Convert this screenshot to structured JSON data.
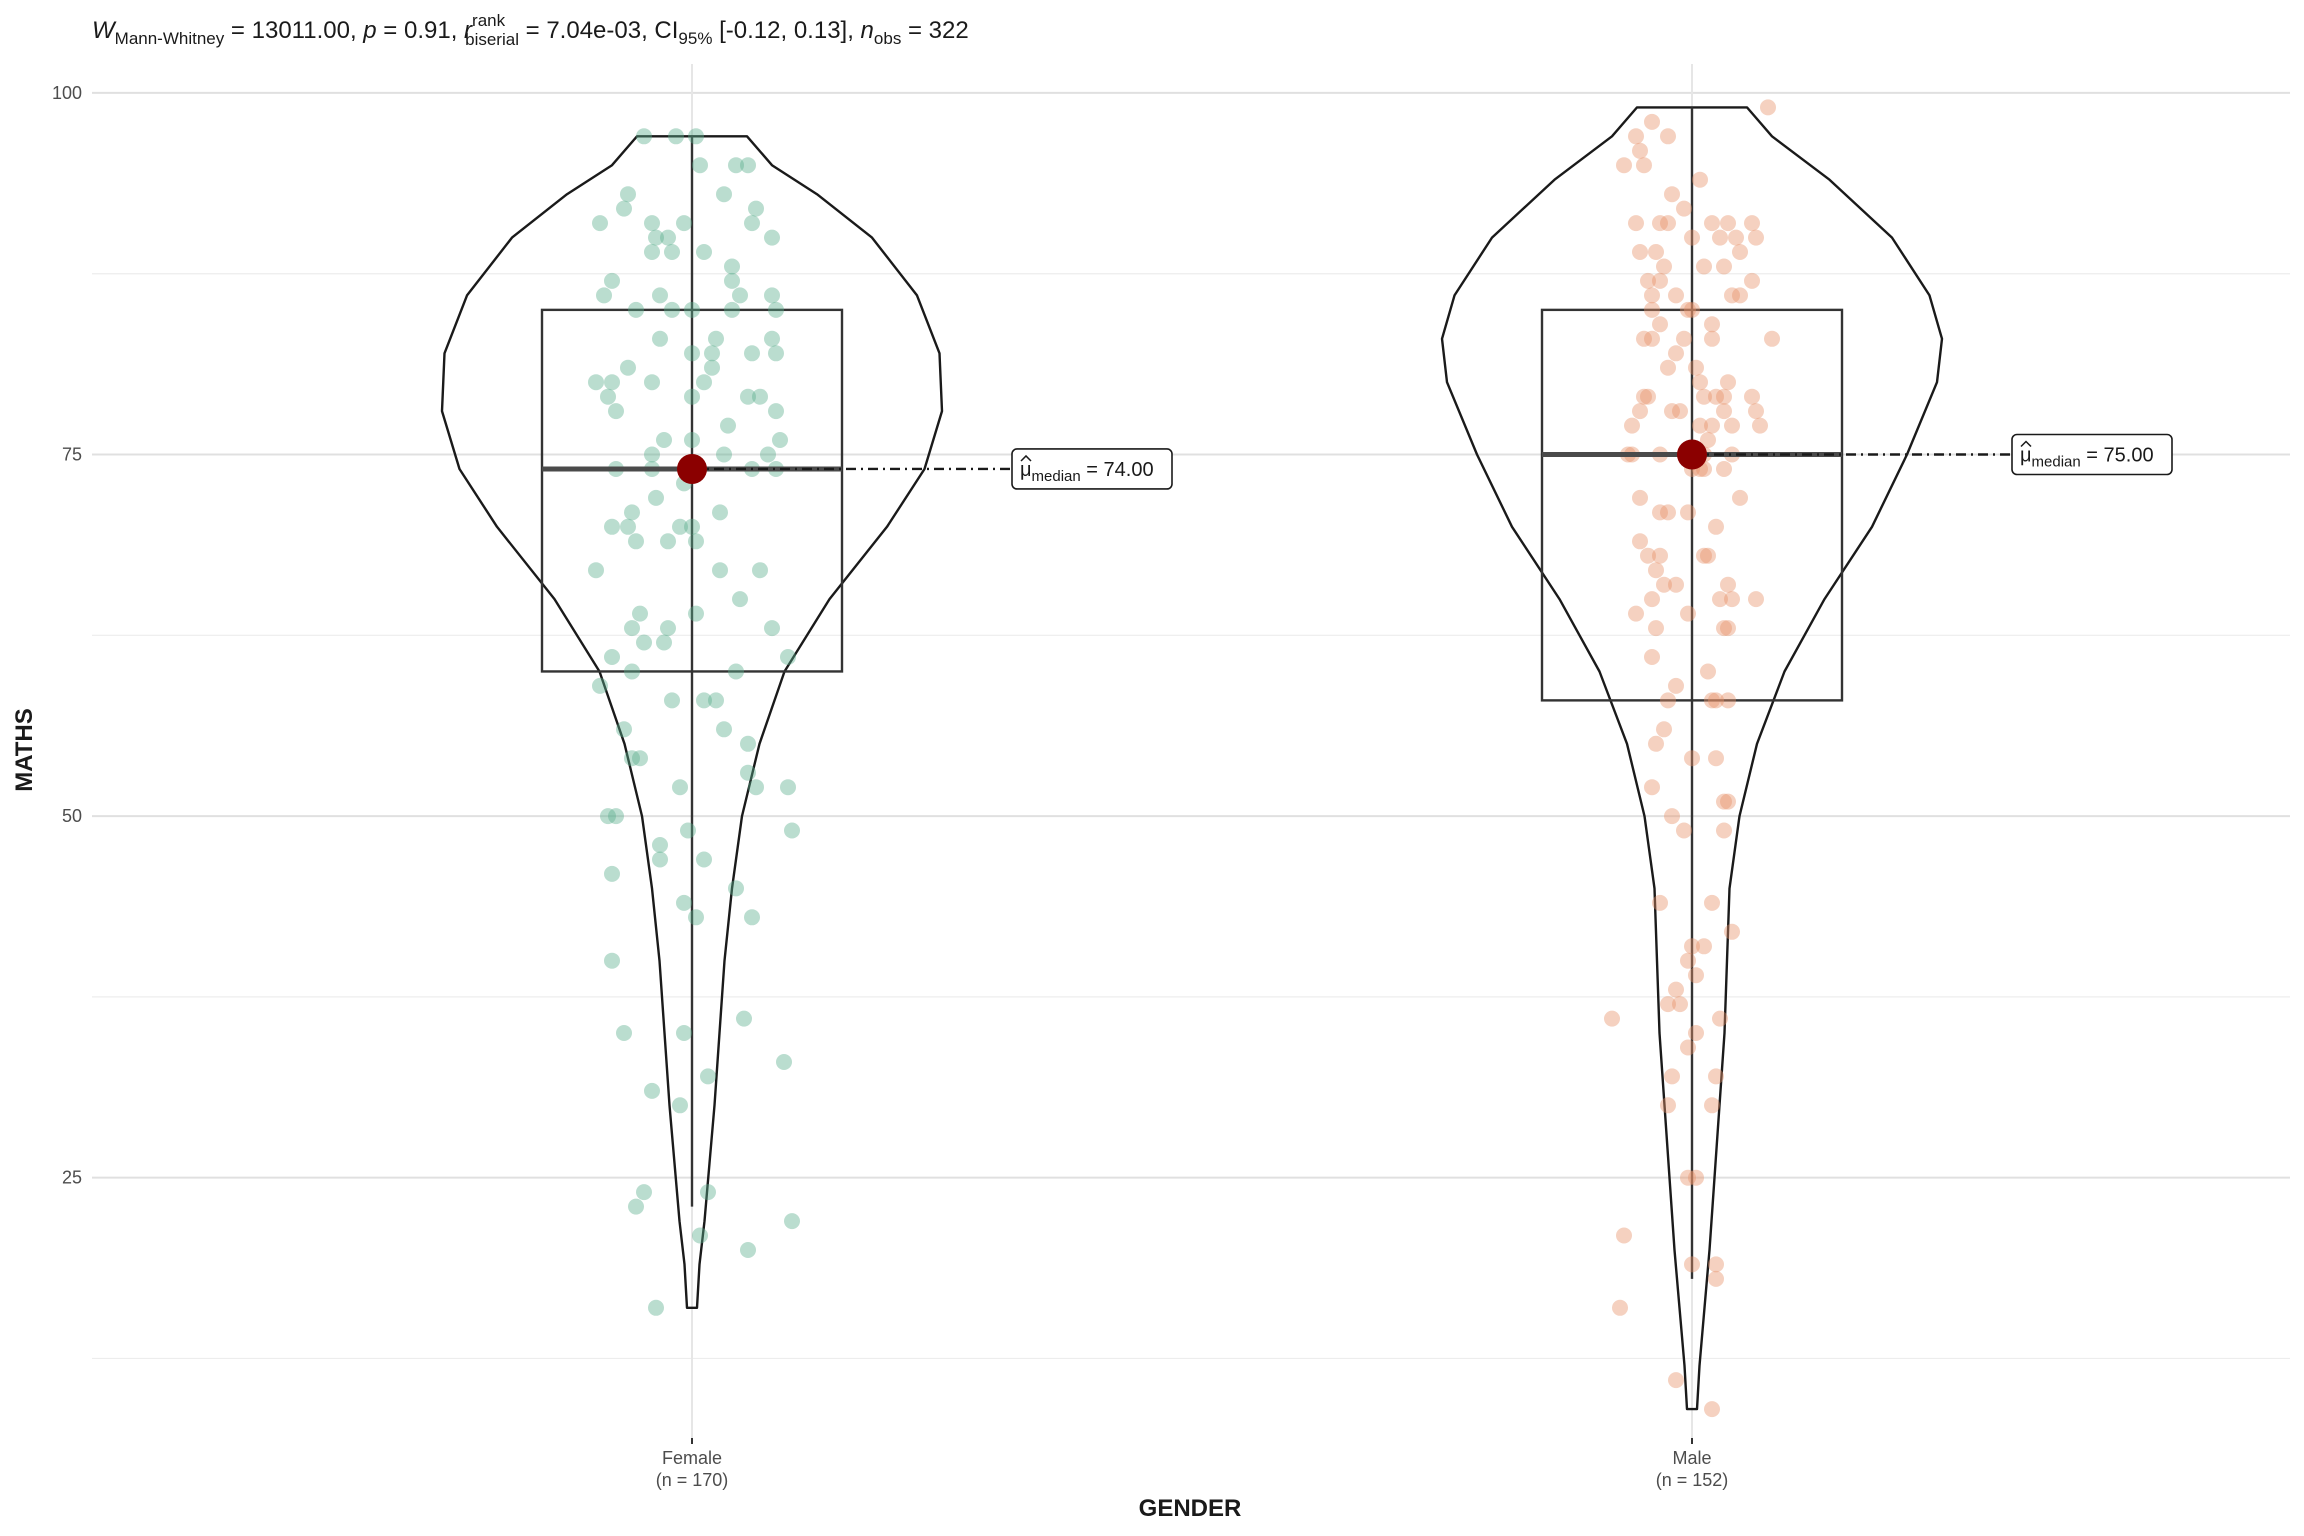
{
  "chart_data": {
    "type": "violin-box-scatter",
    "subtitle": {
      "w_symbol": "W",
      "w_sub": "Mann-Whitney",
      "w_value": " = 13011.00, ",
      "p_symbol": "p",
      "p_value": " = 0.91, ",
      "r_symbol": "r",
      "r_sup": "rank",
      "r_sub": "biserial",
      "r_value": " = 7.04e-03, CI",
      "ci_sub": "95%",
      "ci_value": " [-0.12, 0.13], ",
      "n_symbol": "n",
      "n_sub": "obs",
      "n_value": " = 322"
    },
    "xlabel": "GENDER",
    "ylabel": "MATHS",
    "ylim": [
      7,
      102
    ],
    "y_ticks": [
      25,
      50,
      75,
      100
    ],
    "grid": true,
    "groups": [
      {
        "name": "Female",
        "n_label": "(n = 170)",
        "color": "#5BAE8C",
        "median": 74,
        "q1": 60,
        "q3": 85,
        "whisker_low": 23,
        "whisker_high": 97,
        "min": 16,
        "max": 97,
        "median_label_symbol": "μ",
        "median_label_sub": "median",
        "median_label_value": " = 74.00",
        "violin_profile": [
          [
            16,
            0.02
          ],
          [
            19,
            0.03
          ],
          [
            22,
            0.05
          ],
          [
            26,
            0.07
          ],
          [
            30,
            0.09
          ],
          [
            35,
            0.11
          ],
          [
            40,
            0.13
          ],
          [
            45,
            0.16
          ],
          [
            50,
            0.2
          ],
          [
            55,
            0.27
          ],
          [
            60,
            0.37
          ],
          [
            65,
            0.55
          ],
          [
            70,
            0.78
          ],
          [
            74,
            0.93
          ],
          [
            78,
            1.0
          ],
          [
            82,
            0.99
          ],
          [
            86,
            0.9
          ],
          [
            90,
            0.72
          ],
          [
            93,
            0.5
          ],
          [
            95,
            0.32
          ],
          [
            97,
            0.22
          ]
        ],
        "points": [
          [
            97,
            -0.12
          ],
          [
            97,
            -0.04
          ],
          [
            97,
            0.01
          ],
          [
            95,
            0.02
          ],
          [
            95,
            0.11
          ],
          [
            95,
            0.14
          ],
          [
            93,
            -0.16
          ],
          [
            93,
            0.08
          ],
          [
            92,
            -0.17
          ],
          [
            92,
            0.16
          ],
          [
            91,
            -0.23
          ],
          [
            91,
            -0.1
          ],
          [
            91,
            -0.02
          ],
          [
            91,
            0.15
          ],
          [
            90,
            -0.09
          ],
          [
            90,
            -0.06
          ],
          [
            90,
            0.2
          ],
          [
            89,
            -0.05
          ],
          [
            89,
            0.03
          ],
          [
            89,
            -0.1
          ],
          [
            88,
            0.1
          ],
          [
            87,
            -0.2
          ],
          [
            87,
            0.1
          ],
          [
            86,
            -0.22
          ],
          [
            86,
            -0.08
          ],
          [
            86,
            0.12
          ],
          [
            86,
            0.2
          ],
          [
            85,
            -0.14
          ],
          [
            85,
            -0.05
          ],
          [
            85,
            0.0
          ],
          [
            85,
            0.1
          ],
          [
            85,
            0.21
          ],
          [
            83,
            -0.08
          ],
          [
            83,
            0.06
          ],
          [
            83,
            0.2
          ],
          [
            82,
            0.0
          ],
          [
            82,
            0.05
          ],
          [
            82,
            0.15
          ],
          [
            82,
            0.21
          ],
          [
            81,
            -0.16
          ],
          [
            81,
            0.05
          ],
          [
            80,
            -0.24
          ],
          [
            80,
            -0.2
          ],
          [
            80,
            -0.1
          ],
          [
            80,
            0.03
          ],
          [
            79,
            -0.21
          ],
          [
            79,
            0.0
          ],
          [
            79,
            0.14
          ],
          [
            79,
            0.17
          ],
          [
            78,
            -0.19
          ],
          [
            78,
            0.21
          ],
          [
            77,
            0.09
          ],
          [
            76,
            -0.07
          ],
          [
            76,
            0.0
          ],
          [
            76,
            0.22
          ],
          [
            75,
            -0.1
          ],
          [
            75,
            0.08
          ],
          [
            75,
            0.19
          ],
          [
            74,
            -0.19
          ],
          [
            74,
            -0.1
          ],
          [
            74,
            0.15
          ],
          [
            74,
            0.21
          ],
          [
            73,
            -0.02
          ],
          [
            72,
            -0.09
          ],
          [
            71,
            -0.15
          ],
          [
            71,
            0.07
          ],
          [
            70,
            -0.2
          ],
          [
            70,
            -0.16
          ],
          [
            70,
            -0.03
          ],
          [
            70,
            0.0
          ],
          [
            69,
            -0.14
          ],
          [
            69,
            -0.06
          ],
          [
            69,
            0.01
          ],
          [
            67,
            -0.24
          ],
          [
            67,
            0.07
          ],
          [
            67,
            0.17
          ],
          [
            65,
            0.12
          ],
          [
            64,
            -0.13
          ],
          [
            64,
            0.01
          ],
          [
            63,
            -0.15
          ],
          [
            63,
            -0.06
          ],
          [
            63,
            0.2
          ],
          [
            62,
            -0.12
          ],
          [
            62,
            -0.07
          ],
          [
            61,
            -0.2
          ],
          [
            61,
            0.24
          ],
          [
            60,
            -0.15
          ],
          [
            60,
            0.11
          ],
          [
            59,
            -0.23
          ],
          [
            58,
            -0.05
          ],
          [
            58,
            0.03
          ],
          [
            58,
            0.06
          ],
          [
            56,
            -0.17
          ],
          [
            56,
            0.08
          ],
          [
            55,
            0.14
          ],
          [
            54,
            -0.15
          ],
          [
            54,
            -0.13
          ],
          [
            53,
            0.14
          ],
          [
            52,
            -0.03
          ],
          [
            52,
            0.16
          ],
          [
            52,
            0.24
          ],
          [
            50,
            -0.21
          ],
          [
            50,
            -0.19
          ],
          [
            49,
            -0.01
          ],
          [
            49,
            0.25
          ],
          [
            48,
            -0.08
          ],
          [
            47,
            -0.08
          ],
          [
            47,
            0.03
          ],
          [
            46,
            -0.2
          ],
          [
            45,
            0.11
          ],
          [
            44,
            -0.02
          ],
          [
            43,
            0.01
          ],
          [
            43,
            0.15
          ],
          [
            40,
            -0.2
          ],
          [
            36,
            0.13
          ],
          [
            35,
            -0.17
          ],
          [
            35,
            -0.02
          ],
          [
            33,
            0.23
          ],
          [
            32,
            0.04
          ],
          [
            31,
            -0.1
          ],
          [
            30,
            -0.03
          ],
          [
            24,
            -0.12
          ],
          [
            24,
            0.04
          ],
          [
            23,
            -0.14
          ],
          [
            22,
            0.25
          ],
          [
            21,
            0.02
          ],
          [
            20,
            0.14
          ],
          [
            16,
            -0.09
          ]
        ]
      },
      {
        "name": "Male",
        "n_label": "(n = 152)",
        "color": "#E8916A",
        "median": 75,
        "q1": 58,
        "q3": 85,
        "whisker_low": 18,
        "whisker_high": 99,
        "min": 9,
        "max": 99,
        "median_label_symbol": "μ",
        "median_label_sub": "median",
        "median_label_value": " = 75.00",
        "violin_profile": [
          [
            9,
            0.02
          ],
          [
            12,
            0.03
          ],
          [
            16,
            0.05
          ],
          [
            20,
            0.07
          ],
          [
            25,
            0.09
          ],
          [
            30,
            0.11
          ],
          [
            35,
            0.13
          ],
          [
            40,
            0.14
          ],
          [
            45,
            0.15
          ],
          [
            50,
            0.19
          ],
          [
            55,
            0.26
          ],
          [
            60,
            0.37
          ],
          [
            65,
            0.53
          ],
          [
            70,
            0.72
          ],
          [
            75,
            0.86
          ],
          [
            80,
            0.98
          ],
          [
            83,
            1.0
          ],
          [
            86,
            0.95
          ],
          [
            90,
            0.8
          ],
          [
            94,
            0.55
          ],
          [
            97,
            0.32
          ],
          [
            99,
            0.22
          ]
        ],
        "points": [
          [
            99,
            0.19
          ],
          [
            98,
            -0.1
          ],
          [
            97,
            -0.14
          ],
          [
            97,
            -0.06
          ],
          [
            96,
            -0.13
          ],
          [
            95,
            -0.17
          ],
          [
            95,
            -0.12
          ],
          [
            94,
            0.02
          ],
          [
            93,
            -0.05
          ],
          [
            92,
            -0.02
          ],
          [
            91,
            -0.14
          ],
          [
            91,
            -0.08
          ],
          [
            91,
            -0.06
          ],
          [
            91,
            0.05
          ],
          [
            91,
            0.09
          ],
          [
            91,
            0.15
          ],
          [
            90,
            0.0
          ],
          [
            90,
            0.07
          ],
          [
            90,
            0.11
          ],
          [
            90,
            0.16
          ],
          [
            89,
            -0.13
          ],
          [
            89,
            -0.09
          ],
          [
            89,
            0.12
          ],
          [
            88,
            -0.07
          ],
          [
            88,
            0.03
          ],
          [
            88,
            0.08
          ],
          [
            87,
            -0.11
          ],
          [
            87,
            -0.08
          ],
          [
            87,
            0.15
          ],
          [
            86,
            -0.1
          ],
          [
            86,
            -0.04
          ],
          [
            86,
            0.1
          ],
          [
            86,
            0.12
          ],
          [
            85,
            -0.1
          ],
          [
            85,
            -0.01
          ],
          [
            85,
            0.0
          ],
          [
            84,
            -0.08
          ],
          [
            84,
            0.05
          ],
          [
            83,
            -0.12
          ],
          [
            83,
            -0.1
          ],
          [
            83,
            -0.02
          ],
          [
            83,
            0.05
          ],
          [
            83,
            0.2
          ],
          [
            82,
            -0.04
          ],
          [
            81,
            -0.06
          ],
          [
            81,
            0.01
          ],
          [
            80,
            0.02
          ],
          [
            80,
            0.09
          ],
          [
            79,
            -0.12
          ],
          [
            79,
            -0.11
          ],
          [
            79,
            0.03
          ],
          [
            79,
            0.06
          ],
          [
            79,
            0.08
          ],
          [
            79,
            0.15
          ],
          [
            78,
            -0.13
          ],
          [
            78,
            -0.05
          ],
          [
            78,
            -0.03
          ],
          [
            78,
            0.08
          ],
          [
            78,
            0.16
          ],
          [
            77,
            -0.15
          ],
          [
            77,
            0.02
          ],
          [
            77,
            0.05
          ],
          [
            77,
            0.1
          ],
          [
            77,
            0.17
          ],
          [
            76,
            0.04
          ],
          [
            75,
            -0.16
          ],
          [
            75,
            -0.15
          ],
          [
            75,
            -0.08
          ],
          [
            75,
            0.03
          ],
          [
            75,
            0.1
          ],
          [
            74,
            0.0
          ],
          [
            74,
            0.02
          ],
          [
            74,
            0.03
          ],
          [
            74,
            0.08
          ],
          [
            72,
            -0.13
          ],
          [
            72,
            0.12
          ],
          [
            71,
            -0.08
          ],
          [
            71,
            -0.06
          ],
          [
            71,
            -0.01
          ],
          [
            70,
            0.06
          ],
          [
            69,
            -0.13
          ],
          [
            68,
            -0.11
          ],
          [
            68,
            -0.08
          ],
          [
            68,
            0.03
          ],
          [
            68,
            0.04
          ],
          [
            67,
            -0.09
          ],
          [
            66,
            -0.07
          ],
          [
            66,
            -0.04
          ],
          [
            66,
            0.09
          ],
          [
            65,
            -0.1
          ],
          [
            65,
            0.07
          ],
          [
            65,
            0.1
          ],
          [
            65,
            0.16
          ],
          [
            64,
            -0.14
          ],
          [
            64,
            -0.01
          ],
          [
            63,
            -0.09
          ],
          [
            63,
            0.08
          ],
          [
            63,
            0.09
          ],
          [
            61,
            -0.1
          ],
          [
            60,
            0.04
          ],
          [
            59,
            -0.04
          ],
          [
            58,
            -0.06
          ],
          [
            58,
            0.05
          ],
          [
            58,
            0.06
          ],
          [
            58,
            0.09
          ],
          [
            56,
            -0.07
          ],
          [
            55,
            -0.09
          ],
          [
            54,
            0.0
          ],
          [
            54,
            0.06
          ],
          [
            52,
            -0.1
          ],
          [
            51,
            0.08
          ],
          [
            51,
            0.09
          ],
          [
            50,
            -0.05
          ],
          [
            49,
            -0.02
          ],
          [
            49,
            0.08
          ],
          [
            44,
            -0.08
          ],
          [
            44,
            0.05
          ],
          [
            42,
            0.1
          ],
          [
            41,
            0.0
          ],
          [
            41,
            0.03
          ],
          [
            40,
            -0.01
          ],
          [
            39,
            0.01
          ],
          [
            38,
            -0.04
          ],
          [
            37,
            -0.06
          ],
          [
            37,
            -0.03
          ],
          [
            36,
            -0.2
          ],
          [
            36,
            0.07
          ],
          [
            35,
            0.01
          ],
          [
            34,
            -0.01
          ],
          [
            32,
            -0.05
          ],
          [
            32,
            0.06
          ],
          [
            30,
            -0.06
          ],
          [
            30,
            0.05
          ],
          [
            25,
            -0.01
          ],
          [
            25,
            0.01
          ],
          [
            21,
            -0.17
          ],
          [
            19,
            0.0
          ],
          [
            19,
            0.06
          ],
          [
            18,
            0.06
          ],
          [
            16,
            -0.18
          ],
          [
            11,
            -0.04
          ],
          [
            9,
            0.05
          ]
        ]
      }
    ]
  }
}
